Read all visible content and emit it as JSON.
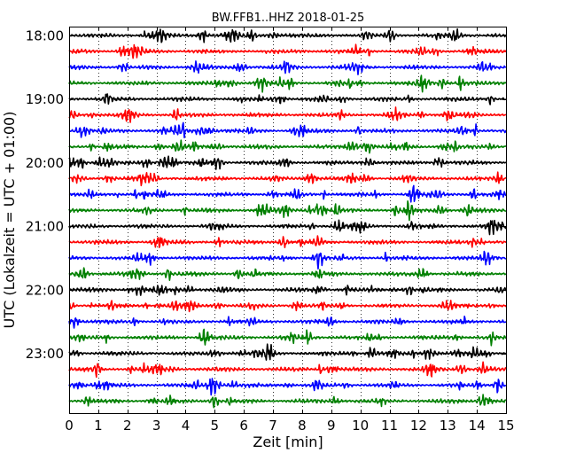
{
  "chart_data": {
    "type": "line",
    "title": "BW.FFB1..HHZ 2018-01-25",
    "xlabel": "Zeit  [min]",
    "ylabel": "UTC (Lokalzeit = UTC + 01:00)",
    "xlim": [
      0,
      15
    ],
    "xticks": [
      0,
      1,
      2,
      3,
      4,
      5,
      6,
      7,
      8,
      9,
      10,
      11,
      12,
      13,
      14,
      15
    ],
    "ytick_labels": [
      "18:00",
      "19:00",
      "20:00",
      "21:00",
      "22:00",
      "23:00"
    ],
    "grid": "vertical dotted at each minute",
    "rows_per_hour": 4,
    "series": [
      {
        "color": "#000000"
      },
      {
        "color": "#ff0000"
      },
      {
        "color": "#0000ff"
      },
      {
        "color": "#008000"
      }
    ],
    "traces": [
      {
        "start": "18:00",
        "color_index": 0
      },
      {
        "start": "18:15",
        "color_index": 1
      },
      {
        "start": "18:30",
        "color_index": 2
      },
      {
        "start": "18:45",
        "color_index": 3
      },
      {
        "start": "19:00",
        "color_index": 0
      },
      {
        "start": "19:15",
        "color_index": 1
      },
      {
        "start": "19:30",
        "color_index": 2
      },
      {
        "start": "19:45",
        "color_index": 3
      },
      {
        "start": "20:00",
        "color_index": 0
      },
      {
        "start": "20:15",
        "color_index": 1
      },
      {
        "start": "20:30",
        "color_index": 2
      },
      {
        "start": "20:45",
        "color_index": 3
      },
      {
        "start": "21:00",
        "color_index": 0
      },
      {
        "start": "21:15",
        "color_index": 1
      },
      {
        "start": "21:30",
        "color_index": 2
      },
      {
        "start": "21:45",
        "color_index": 3
      },
      {
        "start": "22:00",
        "color_index": 0
      },
      {
        "start": "22:15",
        "color_index": 1
      },
      {
        "start": "22:30",
        "color_index": 2
      },
      {
        "start": "22:45",
        "color_index": 3
      },
      {
        "start": "23:00",
        "color_index": 0
      },
      {
        "start": "23:15",
        "color_index": 1
      },
      {
        "start": "23:30",
        "color_index": 2
      },
      {
        "start": "23:45",
        "color_index": 3
      }
    ]
  }
}
